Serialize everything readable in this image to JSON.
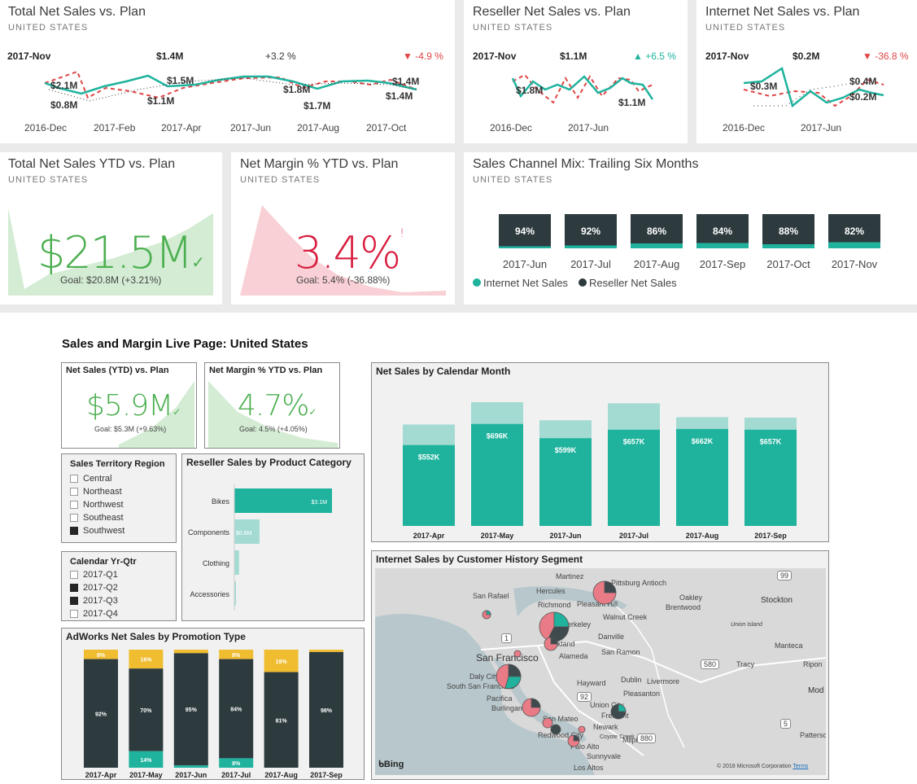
{
  "top": {
    "subtitle": "UNITED STATES",
    "total": {
      "title": "Total Net Sales vs. Plan",
      "period": "2017-Nov",
      "value": "$1.4M",
      "pct": "+3.2 %",
      "var": "-4.9 %",
      "labels": [
        "$2.1M",
        "$0.8M",
        "$1.5M",
        "$1.1M",
        "$1.8M",
        "$1.7M",
        "$1.4M",
        "$1.4M"
      ],
      "axis": [
        "2016-Dec",
        "2017-Feb",
        "2017-Apr",
        "2017-Jun",
        "2017-Aug",
        "2017-Oct"
      ]
    },
    "reseller": {
      "title": "Reseller Net Sales vs. Plan",
      "period": "2017-Nov",
      "value": "$1.1M",
      "var": "+6.5 %",
      "labels": [
        "$1.8M",
        "$1.1M"
      ],
      "axis": [
        "2016-Dec",
        "2017-Jun"
      ]
    },
    "internet": {
      "title": "Internet Net Sales vs. Plan",
      "period": "2017-Nov",
      "value": "$0.2M",
      "var": "-36.8 %",
      "labels": [
        "$0.3M",
        "$0.4M",
        "$0.2M"
      ],
      "axis": [
        "2016-Dec",
        "2017-Jun"
      ]
    },
    "ytd": {
      "title": "Total Net Sales YTD vs. Plan",
      "value": "$21.5M",
      "goal": "Goal: $20.8M (+3.21%)"
    },
    "margin": {
      "title": "Net Margin % YTD vs. Plan",
      "value": "3.4%",
      "flag": "!",
      "goal": "Goal: 5.4% (-36.88%)"
    },
    "mix": {
      "title": "Sales Channel Mix: Trailing Six Months",
      "months": [
        "2017-Jun",
        "2017-Jul",
        "2017-Aug",
        "2017-Sep",
        "2017-Oct",
        "2017-Nov"
      ],
      "values": [
        "94%",
        "92%",
        "86%",
        "84%",
        "88%",
        "82%"
      ],
      "reseller_share": [
        0.94,
        0.92,
        0.86,
        0.84,
        0.88,
        0.82
      ],
      "legend_internet": "Internet Net Sales",
      "legend_reseller": "Reseller Net Sales"
    }
  },
  "colors": {
    "teal": "#1fb39e",
    "teal_light": "#a3dbd3",
    "red": "#e04545",
    "dark": "#2d3a3e",
    "yellow": "#f0bc30",
    "green": "#4caf50",
    "pink": "#d81e3f"
  },
  "page": {
    "title": "Sales and Margin Live Page: United States",
    "netSales": {
      "title": "Net Sales (YTD) vs. Plan",
      "value": "$5.9M",
      "goal": "Goal: $5.3M (+9.63%)"
    },
    "netMargin": {
      "title": "Net Margin % YTD vs. Plan",
      "value": "4.7%",
      "goal": "Goal: 4.5% (+4.05%)"
    },
    "region": {
      "title": "Sales Territory Region",
      "items": [
        "Central",
        "Northeast",
        "Northwest",
        "Southeast",
        "Southwest"
      ],
      "checked": [
        false,
        false,
        false,
        false,
        true
      ]
    },
    "quarter": {
      "title": "Calendar Yr-Qtr",
      "items": [
        "2017-Q1",
        "2017-Q2",
        "2017-Q3",
        "2017-Q4"
      ],
      "checked": [
        false,
        true,
        true,
        false
      ]
    },
    "category": {
      "title": "Reseller Sales by Product Category",
      "categories": [
        "Bikes",
        "Components",
        "Clothing",
        "Accessories"
      ],
      "labels": [
        "$3.1M",
        "$0.8M",
        "",
        ""
      ]
    },
    "promo": {
      "title": "AdWorks Net Sales by Promotion Type",
      "months": [
        "2017-Apr",
        "2017-May",
        "2017-Jun",
        "2017-Jul",
        "2017-Aug",
        "2017-Sep"
      ],
      "top": [
        "8%",
        "16%",
        "",
        "8%",
        "19%",
        ""
      ],
      "mid": [
        "92%",
        "70%",
        "95%",
        "84%",
        "81%",
        "98%"
      ],
      "bottom": [
        "",
        "14%",
        "",
        "8%",
        "",
        ""
      ]
    },
    "calendar": {
      "title": "Net Sales by Calendar Month",
      "months": [
        "2017-Apr",
        "2017-May",
        "2017-Jun",
        "2017-Jul",
        "2017-Aug",
        "2017-Sep"
      ],
      "labels": [
        "$552K",
        "$696K",
        "$599K",
        "$657K",
        "$662K",
        "$657K"
      ]
    },
    "mapPanel": {
      "title": "Internet Sales by Customer History Segment",
      "cities": [
        "Martinez",
        "Pittsburg",
        "Antioch",
        "Hercules",
        "San Rafael",
        "Richmond",
        "Pleasant Hill",
        "Oakley",
        "Brentwood",
        "Walnut Creek",
        "Stockton",
        "Berkeley",
        "Danville",
        "Oakland",
        "San Ramon",
        "Alameda",
        "San Francisco",
        "Manteca",
        "Tracy",
        "Ripon",
        "Daly City",
        "South San Francisco",
        "Hayward",
        "Dublin",
        "Livermore",
        "Pleasanton",
        "Pacifica",
        "Burlingame",
        "Union City",
        "Fremont",
        "San Mateo",
        "Newark",
        "Redwood City",
        "Palo Alto",
        "Milpitas",
        "Sunnyvale",
        "Los Altos",
        "Patterso",
        "Mod",
        "Union Island",
        "Coyote Creek"
      ],
      "roads": [
        "99",
        "580",
        "92",
        "5",
        "880",
        "1"
      ],
      "brand": "Bing",
      "copyright": "© 2018 Microsoft Corporation",
      "terms": "Terms"
    }
  },
  "chart_data": [
    {
      "type": "bar",
      "title": "Net Sales by Calendar Month",
      "categories": [
        "2017-Apr",
        "2017-May",
        "2017-Jun",
        "2017-Jul",
        "2017-Aug",
        "2017-Sep"
      ],
      "series": [
        {
          "name": "Net Sales",
          "values": [
            552,
            696,
            599,
            657,
            662,
            657
          ]
        },
        {
          "values": [
            140,
            148,
            122,
            180,
            80,
            82
          ]
        }
      ]
    },
    {
      "type": "bar",
      "title": "Reseller Sales by Product Category",
      "categories": [
        "Bikes",
        "Components",
        "Clothing",
        "Accessories"
      ],
      "values": [
        3.1,
        0.8,
        0.15,
        0.05
      ]
    },
    {
      "type": "bar",
      "title": "AdWorks Net Sales by Promotion Type",
      "categories": [
        "2017-Apr",
        "2017-May",
        "2017-Jun",
        "2017-Jul",
        "2017-Aug",
        "2017-Sep"
      ],
      "series": [
        {
          "values": [
            8,
            16,
            3,
            8,
            19,
            2
          ]
        },
        {
          "values": [
            92,
            70,
            95,
            84,
            81,
            98
          ]
        },
        {
          "values": [
            0,
            14,
            2,
            8,
            0,
            0
          ]
        }
      ]
    }
  ]
}
